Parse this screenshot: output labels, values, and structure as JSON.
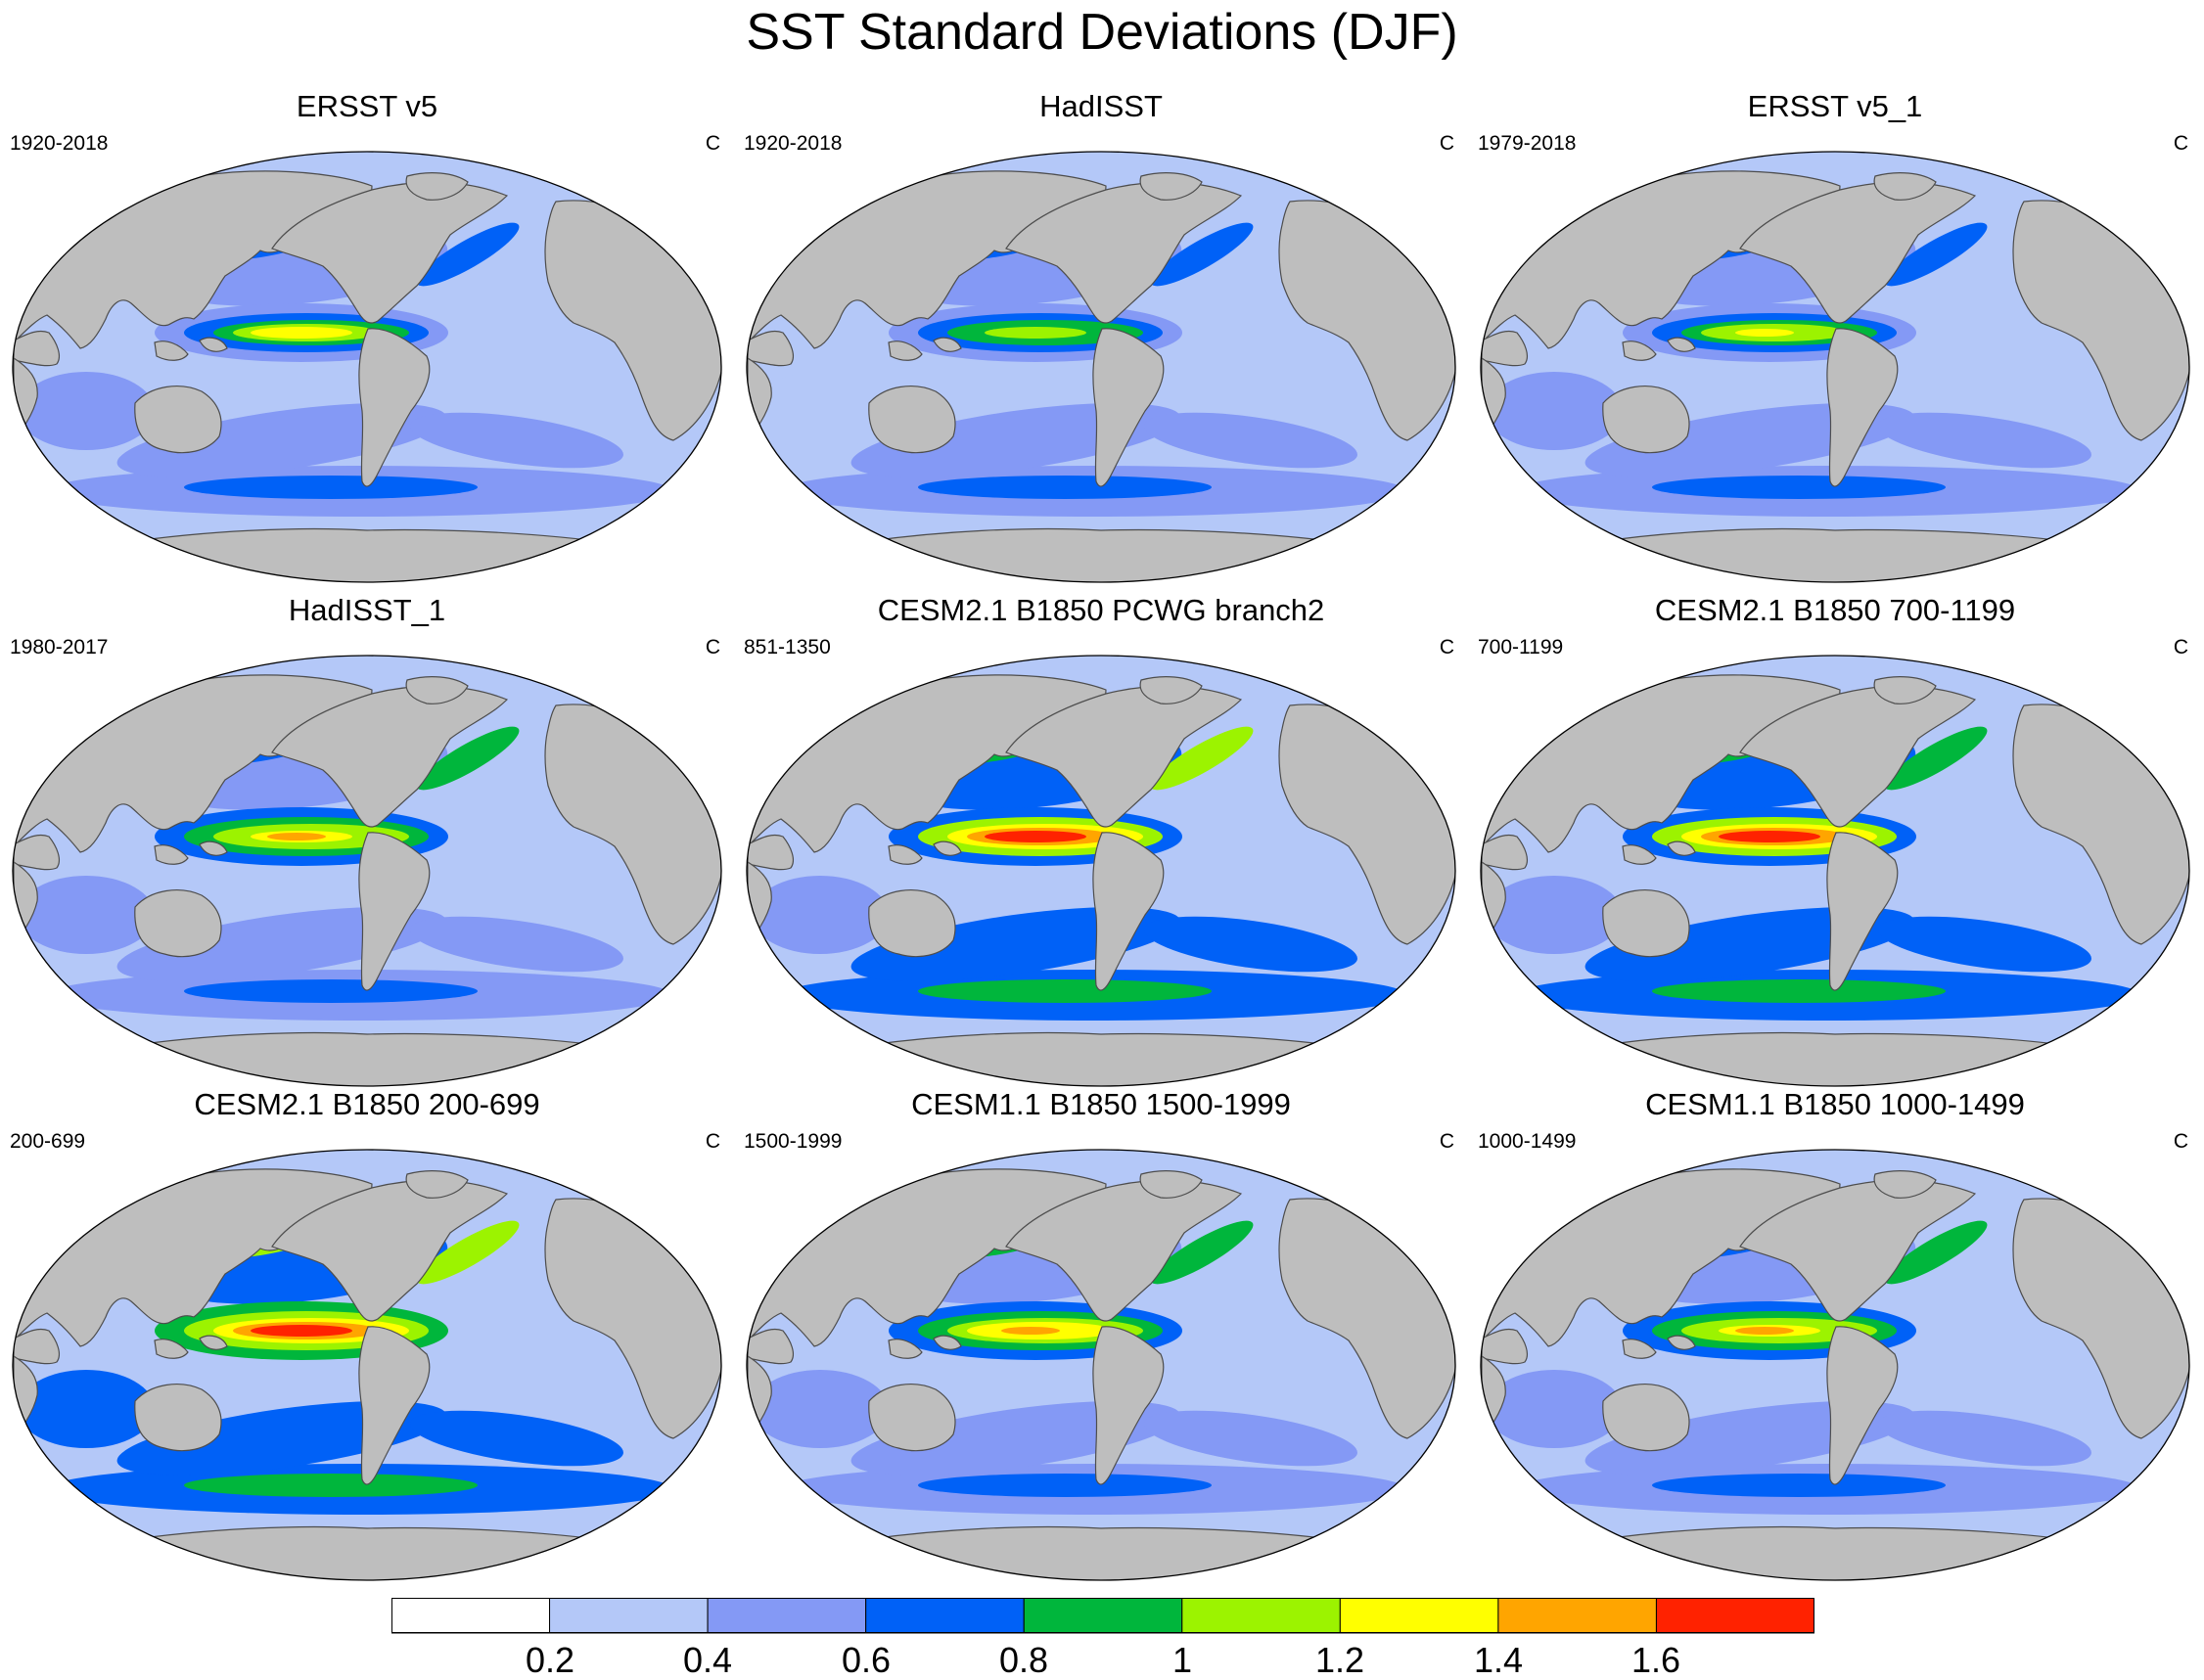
{
  "title": "SST Standard Deviations (DJF)",
  "colors": {
    "land": "#bebebe",
    "coast": "#4d4d4d",
    "levels": [
      "#ffffff",
      "#b4c8f8",
      "#8499f5",
      "#0061f7",
      "#00b63c",
      "#9cf300",
      "#ffff00",
      "#ffa500",
      "#ff2200"
    ]
  },
  "panels": [
    {
      "title": "ERSST v5",
      "period": "1920-2018",
      "units": "C",
      "strength": 0.68
    },
    {
      "title": "HadISST",
      "period": "1920-2018",
      "units": "C",
      "strength": 0.58
    },
    {
      "title": "ERSST v5_1",
      "period": "1979-2018",
      "units": "C",
      "strength": 0.66
    },
    {
      "title": "HadISST_1",
      "period": "1980-2017",
      "units": "C",
      "strength": 0.74
    },
    {
      "title": "CESM2.1 B1850 PCWG branch2",
      "period": "851-1350",
      "units": "C",
      "strength": 0.95
    },
    {
      "title": "CESM2.1 B1850 700-1199",
      "period": "700-1199",
      "units": "C",
      "strength": 0.93
    },
    {
      "title": "CESM2.1 B1850 200-699",
      "period": "200-699",
      "units": "C",
      "strength": 0.98
    },
    {
      "title": "CESM1.1 B1850 1500-1999",
      "period": "1500-1999",
      "units": "C",
      "strength": 0.76
    },
    {
      "title": "CESM1.1 B1850 1000-1499",
      "period": "1000-1499",
      "units": "C",
      "strength": 0.74
    }
  ],
  "colorbar": {
    "labels": [
      "0.2",
      "0.4",
      "0.6",
      "0.8",
      "1",
      "1.2",
      "1.4",
      "1.6"
    ],
    "boundaries": [
      0.2,
      0.4,
      0.6,
      0.8,
      1.0,
      1.2,
      1.4,
      1.6
    ]
  }
}
